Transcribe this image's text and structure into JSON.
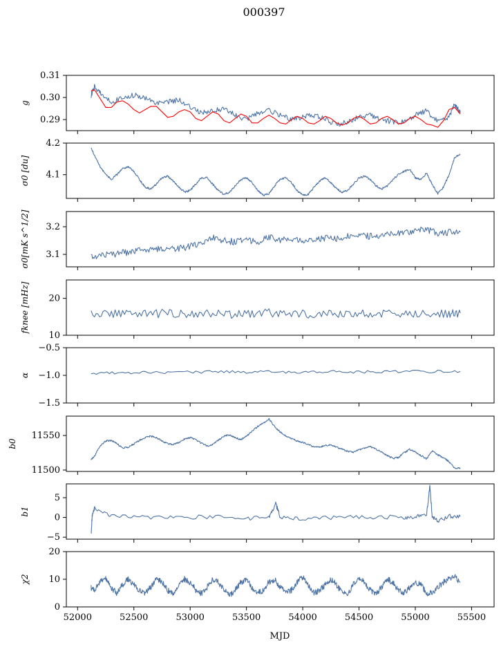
{
  "figure": {
    "title": "000397",
    "xlabel": "MJD"
  },
  "colors": {
    "main": "#4c72a4",
    "model": "#ff0000"
  },
  "chart_data": [
    {
      "type": "line",
      "ylabel": "g",
      "xlim": [
        51900,
        55700
      ],
      "ylim": [
        0.285,
        0.31
      ],
      "yticks": [
        0.29,
        0.3,
        0.31
      ],
      "yticklabels": [
        "0.29",
        "0.30",
        "0.31"
      ],
      "series": [
        {
          "x": [
            52120,
            52150,
            52200,
            52300,
            52400,
            52500,
            52600,
            52700,
            52800,
            52900,
            53000,
            53100,
            53200,
            53300,
            53400,
            53500,
            53600,
            53700,
            53800,
            53900,
            54000,
            54100,
            54200,
            54300,
            54400,
            54500,
            54600,
            54700,
            54800,
            54900,
            55000,
            55100,
            55200,
            55300,
            55350,
            55400
          ],
          "y": [
            0.301,
            0.305,
            0.302,
            0.298,
            0.3,
            0.301,
            0.3,
            0.297,
            0.298,
            0.299,
            0.296,
            0.293,
            0.294,
            0.295,
            0.292,
            0.29,
            0.293,
            0.294,
            0.292,
            0.29,
            0.291,
            0.292,
            0.29,
            0.288,
            0.289,
            0.291,
            0.292,
            0.29,
            0.289,
            0.289,
            0.292,
            0.294,
            0.289,
            0.291,
            0.297,
            0.293
          ]
        },
        {
          "x": [
            52120,
            52150,
            52200,
            52250,
            52300,
            52350,
            52400,
            52450,
            52500,
            52550,
            52600,
            52650,
            52700,
            52750,
            52800,
            52850,
            52900,
            52950,
            53000,
            53050,
            53100,
            53150,
            53200,
            53250,
            53300,
            53350,
            53400,
            53450,
            53500,
            53550,
            53600,
            53650,
            53700,
            53750,
            53800,
            53850,
            53900,
            53950,
            54000,
            54050,
            54100,
            54150,
            54200,
            54250,
            54300,
            54350,
            54400,
            54450,
            54500,
            54550,
            54600,
            54650,
            54700,
            54750,
            54800,
            54850,
            54900,
            54950,
            55000,
            55050,
            55100,
            55150,
            55200,
            55250,
            55300,
            55350,
            55400
          ],
          "y": [
            0.303,
            0.3035,
            0.2995,
            0.2955,
            0.2955,
            0.298,
            0.2985,
            0.297,
            0.2945,
            0.293,
            0.2945,
            0.296,
            0.296,
            0.2935,
            0.291,
            0.2915,
            0.2935,
            0.2945,
            0.2935,
            0.2905,
            0.2895,
            0.2915,
            0.2935,
            0.2925,
            0.2895,
            0.2885,
            0.2905,
            0.2925,
            0.2915,
            0.2885,
            0.2885,
            0.2905,
            0.292,
            0.2905,
            0.2885,
            0.288,
            0.29,
            0.2915,
            0.2905,
            0.2885,
            0.288,
            0.2895,
            0.2915,
            0.2905,
            0.2885,
            0.2875,
            0.2885,
            0.2905,
            0.2915,
            0.29,
            0.288,
            0.2885,
            0.2905,
            0.2915,
            0.29,
            0.288,
            0.2885,
            0.2905,
            0.2915,
            0.29,
            0.288,
            0.2875,
            0.2865,
            0.2895,
            0.2945,
            0.2955,
            0.2925
          ]
        }
      ]
    },
    {
      "type": "line",
      "ylabel": "σ0 [du]",
      "xlim": [
        51900,
        55700
      ],
      "ylim": [
        4.025,
        4.2
      ],
      "yticks": [
        4.1,
        4.2
      ],
      "yticklabels": [
        "4.1",
        "4.2"
      ],
      "series": [
        {
          "x": [
            52120,
            52150,
            52200,
            52250,
            52300,
            52350,
            52400,
            52450,
            52500,
            52550,
            52600,
            52650,
            52700,
            52750,
            52800,
            52850,
            52900,
            52950,
            53000,
            53050,
            53100,
            53150,
            53200,
            53250,
            53300,
            53350,
            53400,
            53450,
            53500,
            53550,
            53600,
            53650,
            53700,
            53750,
            53800,
            53850,
            53900,
            53950,
            54000,
            54050,
            54100,
            54150,
            54200,
            54250,
            54300,
            54350,
            54400,
            54450,
            54500,
            54550,
            54600,
            54650,
            54700,
            54750,
            54800,
            54850,
            54900,
            54950,
            55000,
            55050,
            55100,
            55150,
            55200,
            55250,
            55300,
            55350,
            55400
          ],
          "y": [
            4.185,
            4.16,
            4.125,
            4.1,
            4.085,
            4.1,
            4.12,
            4.125,
            4.11,
            4.085,
            4.06,
            4.055,
            4.07,
            4.09,
            4.095,
            4.08,
            4.06,
            4.045,
            4.05,
            4.07,
            4.09,
            4.09,
            4.07,
            4.05,
            4.038,
            4.045,
            4.065,
            4.085,
            4.09,
            4.075,
            4.05,
            4.035,
            4.04,
            4.065,
            4.085,
            4.09,
            4.075,
            4.05,
            4.035,
            4.038,
            4.06,
            4.08,
            4.09,
            4.075,
            4.055,
            4.045,
            4.05,
            4.07,
            4.09,
            4.095,
            4.085,
            4.065,
            4.055,
            4.065,
            4.085,
            4.1,
            4.11,
            4.118,
            4.09,
            4.085,
            4.105,
            4.07,
            4.04,
            4.06,
            4.1,
            4.155,
            4.165
          ]
        }
      ]
    },
    {
      "type": "line",
      "ylabel": "σ0[mK s^1/2]",
      "xlim": [
        51900,
        55700
      ],
      "ylim": [
        3.055,
        3.255
      ],
      "yticks": [
        3.1,
        3.2
      ],
      "yticklabels": [
        "3.1",
        "3.2"
      ],
      "series": [
        {
          "x": [
            52120,
            52200,
            52300,
            52400,
            52500,
            52600,
            52700,
            52800,
            52900,
            53000,
            53100,
            53200,
            53300,
            53400,
            53500,
            53600,
            53700,
            53800,
            53900,
            54000,
            54100,
            54200,
            54300,
            54400,
            54500,
            54600,
            54700,
            54800,
            54900,
            55000,
            55100,
            55200,
            55300,
            55400
          ],
          "y": [
            3.09,
            3.095,
            3.1,
            3.105,
            3.11,
            3.12,
            3.118,
            3.125,
            3.12,
            3.13,
            3.135,
            3.16,
            3.15,
            3.145,
            3.155,
            3.14,
            3.165,
            3.15,
            3.155,
            3.145,
            3.15,
            3.16,
            3.155,
            3.165,
            3.17,
            3.165,
            3.17,
            3.18,
            3.175,
            3.185,
            3.19,
            3.175,
            3.18,
            3.18
          ]
        }
      ]
    },
    {
      "type": "line",
      "ylabel": "fknee [mHz]",
      "xlim": [
        51900,
        55700
      ],
      "ylim": [
        10,
        25
      ],
      "yticks": [
        10,
        20
      ],
      "yticklabels": [
        "10",
        "20"
      ],
      "series": [
        {
          "x": [
            52120,
            52300,
            52500,
            52700,
            52900,
            53100,
            53300,
            53500,
            53700,
            53900,
            54100,
            54300,
            54500,
            54700,
            54900,
            55100,
            55300,
            55400
          ],
          "y": [
            15.5,
            15.8,
            15.6,
            15.9,
            15.7,
            16.0,
            15.8,
            15.7,
            16.1,
            15.9,
            15.8,
            16.0,
            16.1,
            15.9,
            16.0,
            16.2,
            15.9,
            16.0
          ]
        }
      ]
    },
    {
      "type": "line",
      "ylabel": "α",
      "xlim": [
        51900,
        55700
      ],
      "ylim": [
        -1.5,
        -0.5
      ],
      "yticks": [
        -1.5,
        -1.0,
        -0.5
      ],
      "yticklabels": [
        "−1.5",
        "−1.0",
        "−0.5"
      ],
      "series": [
        {
          "x": [
            52120,
            52400,
            52700,
            53000,
            53300,
            53600,
            53900,
            54200,
            54500,
            54800,
            55100,
            55400
          ],
          "y": [
            -0.96,
            -0.95,
            -0.95,
            -0.94,
            -0.94,
            -0.94,
            -0.94,
            -0.93,
            -0.94,
            -0.93,
            -0.93,
            -0.93
          ]
        }
      ]
    },
    {
      "type": "line",
      "ylabel": "b0",
      "xlim": [
        51900,
        55700
      ],
      "ylim": [
        11498,
        11578
      ],
      "yticks": [
        11500,
        11550
      ],
      "yticklabels": [
        "11500",
        "11550"
      ],
      "series": [
        {
          "x": [
            52120,
            52150,
            52200,
            52250,
            52300,
            52350,
            52400,
            52450,
            52500,
            52550,
            52600,
            52650,
            52700,
            52750,
            52800,
            52850,
            52900,
            52950,
            53000,
            53050,
            53100,
            53150,
            53200,
            53250,
            53300,
            53350,
            53400,
            53450,
            53500,
            53550,
            53600,
            53650,
            53700,
            53750,
            53800,
            53850,
            53900,
            53950,
            54000,
            54050,
            54100,
            54150,
            54200,
            54250,
            54300,
            54350,
            54400,
            54450,
            54500,
            54550,
            54600,
            54650,
            54700,
            54750,
            54800,
            54850,
            54900,
            54950,
            55000,
            55050,
            55100,
            55150,
            55200,
            55250,
            55300,
            55350,
            55400
          ],
          "y": [
            11515,
            11520,
            11535,
            11542,
            11543,
            11538,
            11532,
            11533,
            11538,
            11543,
            11547,
            11549,
            11547,
            11542,
            11538,
            11537,
            11540,
            11545,
            11547,
            11544,
            11539,
            11535,
            11537,
            11543,
            11549,
            11551,
            11547,
            11544,
            11549,
            11556,
            11563,
            11568,
            11574,
            11563,
            11555,
            11549,
            11546,
            11542,
            11540,
            11537,
            11533,
            11533,
            11536,
            11536,
            11533,
            11530,
            11527,
            11526,
            11529,
            11532,
            11534,
            11530,
            11526,
            11521,
            11517,
            11518,
            11525,
            11530,
            11526,
            11521,
            11516,
            11528,
            11522,
            11518,
            11512,
            11503,
            11503
          ]
        }
      ]
    },
    {
      "type": "line",
      "ylabel": "b1",
      "xlim": [
        51900,
        55700
      ],
      "ylim": [
        -5.5,
        8.5
      ],
      "yticks": [
        -5,
        0,
        5
      ],
      "yticklabels": [
        "−5",
        "0",
        "5"
      ],
      "series": [
        {
          "x": [
            52120,
            52130,
            52150,
            52300,
            52600,
            52900,
            53200,
            53500,
            53700,
            53760,
            53800,
            54000,
            54300,
            54600,
            54900,
            55000,
            55100,
            55130,
            55150,
            55200,
            55300,
            55400
          ],
          "y": [
            -4.5,
            0.5,
            2.5,
            0.2,
            0,
            -0.1,
            0.2,
            -0.3,
            0.1,
            3.5,
            0.1,
            -0.2,
            0,
            0.1,
            0,
            0.3,
            0.5,
            8.0,
            0.2,
            -1.0,
            0.3,
            0.2
          ]
        }
      ]
    },
    {
      "type": "line",
      "ylabel": "χ2",
      "xlim": [
        51900,
        55700
      ],
      "ylim": [
        0,
        20
      ],
      "yticks": [
        0,
        10,
        20
      ],
      "yticklabels": [
        "0",
        "10",
        "20"
      ],
      "xticks": [
        52000,
        52500,
        53000,
        53500,
        54000,
        54500,
        55000,
        55500
      ],
      "xticklabels": [
        "52000",
        "52500",
        "53000",
        "53500",
        "54000",
        "54500",
        "55000",
        "55500"
      ],
      "series": [
        {
          "x": [
            52120,
            52150,
            52200,
            52250,
            52300,
            52350,
            52400,
            52450,
            52500,
            52550,
            52600,
            52650,
            52700,
            52750,
            52800,
            52850,
            52900,
            52950,
            53000,
            53050,
            53100,
            53150,
            53200,
            53250,
            53300,
            53350,
            53400,
            53450,
            53500,
            53550,
            53600,
            53650,
            53700,
            53750,
            53800,
            53850,
            53900,
            53950,
            54000,
            54050,
            54100,
            54150,
            54200,
            54250,
            54300,
            54350,
            54400,
            54450,
            54500,
            54550,
            54600,
            54650,
            54700,
            54750,
            54800,
            54850,
            54900,
            54950,
            55000,
            55050,
            55100,
            55150,
            55200,
            55250,
            55300,
            55350,
            55400
          ],
          "y": [
            7,
            6,
            9,
            10,
            7,
            5,
            8,
            10,
            8,
            6,
            5,
            7,
            10,
            9,
            6,
            5,
            8,
            10,
            9,
            6,
            5,
            7,
            10,
            9,
            6,
            4,
            6,
            9,
            10,
            7,
            5,
            6,
            9,
            10,
            7,
            5,
            6,
            9,
            11,
            8,
            5,
            6,
            8,
            10,
            8,
            5,
            5,
            8,
            10,
            9,
            6,
            5,
            7,
            10,
            9,
            6,
            5,
            7,
            9,
            8,
            5,
            5,
            7,
            9,
            10,
            11,
            9
          ]
        }
      ]
    }
  ]
}
